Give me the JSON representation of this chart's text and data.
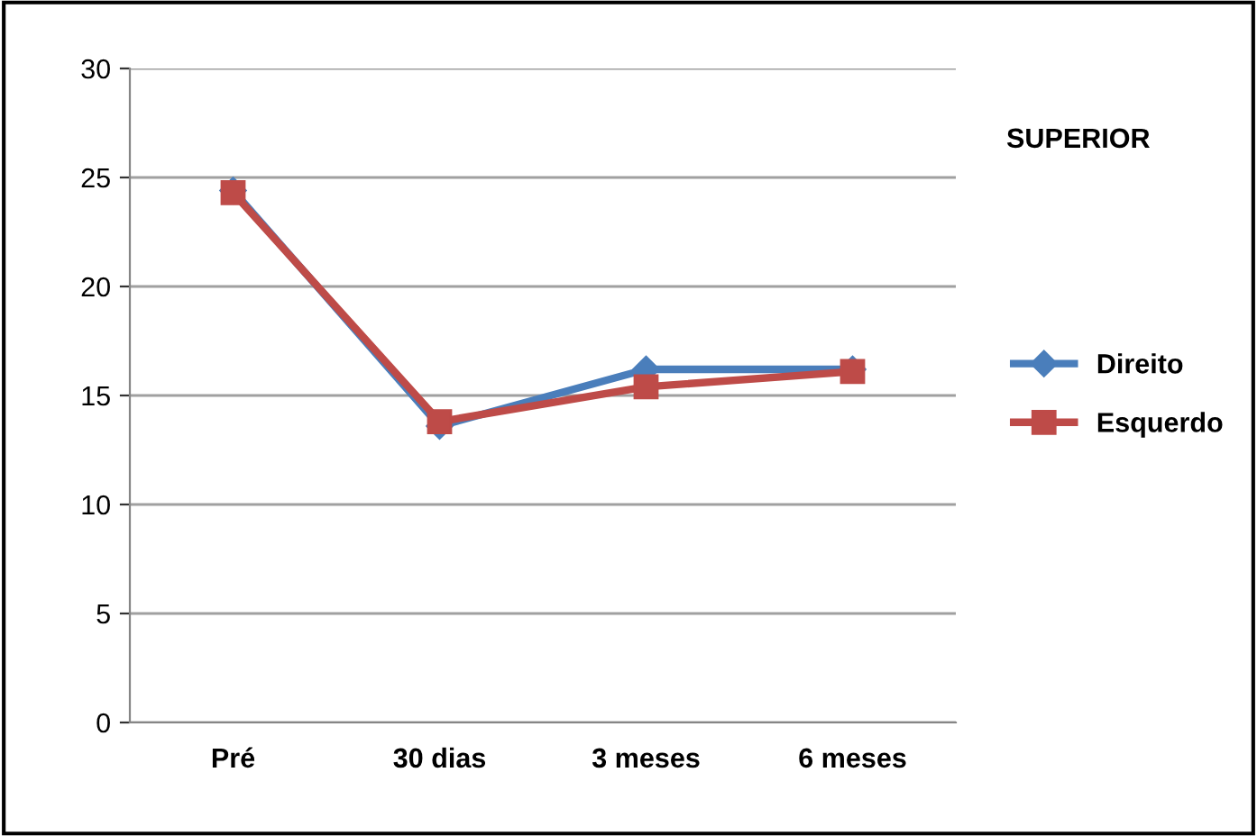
{
  "chart_data": {
    "type": "line",
    "categories": [
      "Pré",
      "30 dias",
      "3 meses",
      "6 meses"
    ],
    "series": [
      {
        "name": "Direito",
        "color": "#4a7ebb",
        "values": [
          24.4,
          13.6,
          16.2,
          16.2
        ],
        "marker": "diamond"
      },
      {
        "name": "Esquerdo",
        "color": "#be4b48",
        "values": [
          24.3,
          13.8,
          15.4,
          16.1
        ],
        "marker": "square"
      }
    ],
    "ylim": [
      0,
      30
    ],
    "yticks": [
      0,
      5,
      10,
      15,
      20,
      25,
      30
    ],
    "grid": "y",
    "legend": "right",
    "annotations": [
      "SUPERIOR"
    ],
    "line_style": "solid"
  }
}
